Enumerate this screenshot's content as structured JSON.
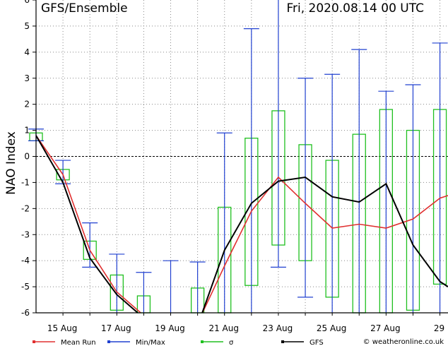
{
  "chart_data": {
    "type": "line",
    "title": "GFS/Ensemble",
    "timestamp": "Fri, 2020.08.14   00 UTC",
    "ylabel": "NAO Index",
    "ylim": [
      -6,
      6
    ],
    "yticks": [
      -6,
      -5,
      -4,
      -3,
      -2,
      -1,
      0,
      1,
      2,
      3,
      4,
      5,
      6
    ],
    "x_tick_labels": [
      "15 Aug",
      "17 Aug",
      "19 Aug",
      "21 Aug",
      "23 Aug",
      "25 Aug",
      "27 Aug",
      "29"
    ],
    "x_tick_days": [
      1,
      3,
      5,
      7,
      9,
      11,
      13,
      15
    ],
    "xlim": [
      0,
      15.3
    ],
    "grid": true,
    "legend_position": "bottom",
    "credit": "© weatheronline.co.uk",
    "colors": {
      "mean": "#e03030",
      "minmax": "#2040d0",
      "sigma": "#20c020",
      "gfs": "#000000",
      "grid": "#888888"
    },
    "series": [
      {
        "name": "Mean Run",
        "x": [
          0,
          1,
          2,
          3,
          4,
          5,
          6,
          7,
          8,
          9,
          10,
          11,
          12,
          13,
          14,
          15,
          15.3
        ],
        "y": [
          0.8,
          -0.7,
          -3.6,
          -5.2,
          -6.1,
          -6.4,
          -6.4,
          -4.2,
          -2.1,
          -0.8,
          -1.8,
          -2.75,
          -2.6,
          -2.75,
          -2.4,
          -1.6,
          -1.5
        ]
      },
      {
        "name": "GFS",
        "x": [
          0,
          1,
          2,
          3,
          4,
          5,
          6,
          7,
          8,
          9,
          10,
          11,
          12,
          13,
          14,
          15,
          15.3
        ],
        "y": [
          0.8,
          -1.0,
          -3.9,
          -5.3,
          -6.2,
          -6.5,
          -6.5,
          -3.6,
          -1.8,
          -0.95,
          -0.8,
          -1.55,
          -1.75,
          -1.05,
          -3.4,
          -4.8,
          -5.0
        ]
      }
    ],
    "minmax": [
      {
        "x": 0,
        "min": 0.6,
        "max": 1.05
      },
      {
        "x": 1,
        "min": -1.05,
        "max": -0.15
      },
      {
        "x": 2,
        "min": -4.25,
        "max": -2.55
      },
      {
        "x": 3,
        "min": -6,
        "max": -3.75
      },
      {
        "x": 4,
        "min": -6,
        "max": -4.45
      },
      {
        "x": 5,
        "min": -6,
        "max": -4.0
      },
      {
        "x": 6,
        "min": -6,
        "max": -4.05
      },
      {
        "x": 7,
        "min": -6,
        "max": 0.9
      },
      {
        "x": 8,
        "min": -6,
        "max": 4.9
      },
      {
        "x": 9,
        "min": -4.25,
        "max": 6
      },
      {
        "x": 10,
        "min": -5.4,
        "max": 3.0
      },
      {
        "x": 11,
        "min": -6,
        "max": 3.15
      },
      {
        "x": 12,
        "min": -6,
        "max": 4.1
      },
      {
        "x": 13,
        "min": -6,
        "max": 2.5
      },
      {
        "x": 14,
        "min": -6,
        "max": 2.75
      },
      {
        "x": 15,
        "min": -6,
        "max": 4.35
      }
    ],
    "sigma": [
      {
        "x": 0,
        "low": 0.6,
        "high": 0.9
      },
      {
        "x": 1,
        "low": -0.9,
        "high": -0.5
      },
      {
        "x": 2,
        "low": -3.95,
        "high": -3.25
      },
      {
        "x": 3,
        "low": -5.9,
        "high": -4.55
      },
      {
        "x": 4,
        "low": -6,
        "high": -5.35
      },
      {
        "x": 6,
        "low": -6,
        "high": -5.05
      },
      {
        "x": 7,
        "low": -6,
        "high": -1.95
      },
      {
        "x": 8,
        "low": -4.95,
        "high": 0.7
      },
      {
        "x": 9,
        "low": -3.4,
        "high": 1.75
      },
      {
        "x": 10,
        "low": -4.0,
        "high": 0.45
      },
      {
        "x": 11,
        "low": -5.4,
        "high": -0.15
      },
      {
        "x": 12,
        "low": -6,
        "high": 0.85
      },
      {
        "x": 13,
        "low": -6,
        "high": 1.8
      },
      {
        "x": 14,
        "low": -5.9,
        "high": 1.0
      },
      {
        "x": 15,
        "low": -4.9,
        "high": 1.8
      }
    ],
    "legend": [
      {
        "label": "Mean Run",
        "key": "mean"
      },
      {
        "label": "Min/Max",
        "key": "minmax"
      },
      {
        "label": "σ",
        "key": "sigma"
      },
      {
        "label": "GFS",
        "key": "gfs"
      }
    ]
  }
}
